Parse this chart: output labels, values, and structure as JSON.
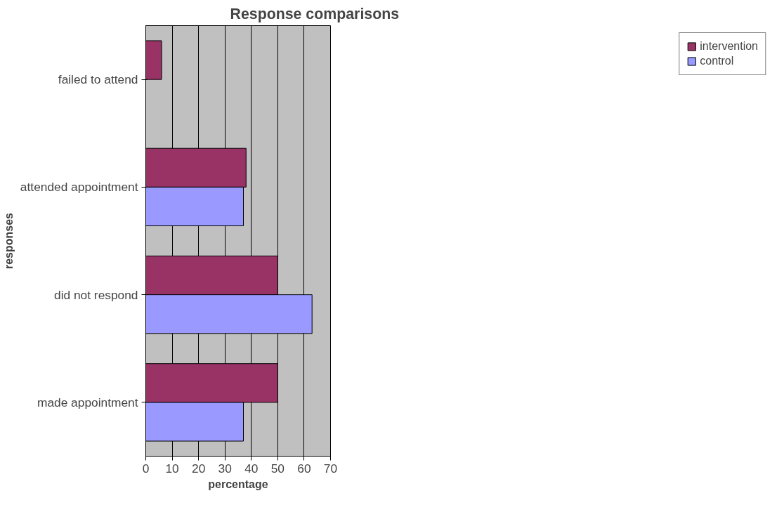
{
  "chart_data": {
    "type": "bar",
    "orientation": "horizontal",
    "title": "Response comparisons",
    "xlabel": "percentage",
    "ylabel": "responses",
    "categories": [
      "failed to attend",
      "attended appointment",
      "did not respond",
      "made appointment"
    ],
    "series": [
      {
        "name": "intervention",
        "color": "#993366",
        "values": [
          6,
          38,
          50,
          50
        ]
      },
      {
        "name": "control",
        "color": "#9999ff",
        "values": [
          null,
          37,
          63,
          37
        ]
      }
    ],
    "xlim": [
      0,
      70
    ],
    "xticks": [
      0,
      10,
      20,
      30,
      40,
      50,
      60,
      70
    ],
    "grid": "x",
    "legend": "right"
  }
}
